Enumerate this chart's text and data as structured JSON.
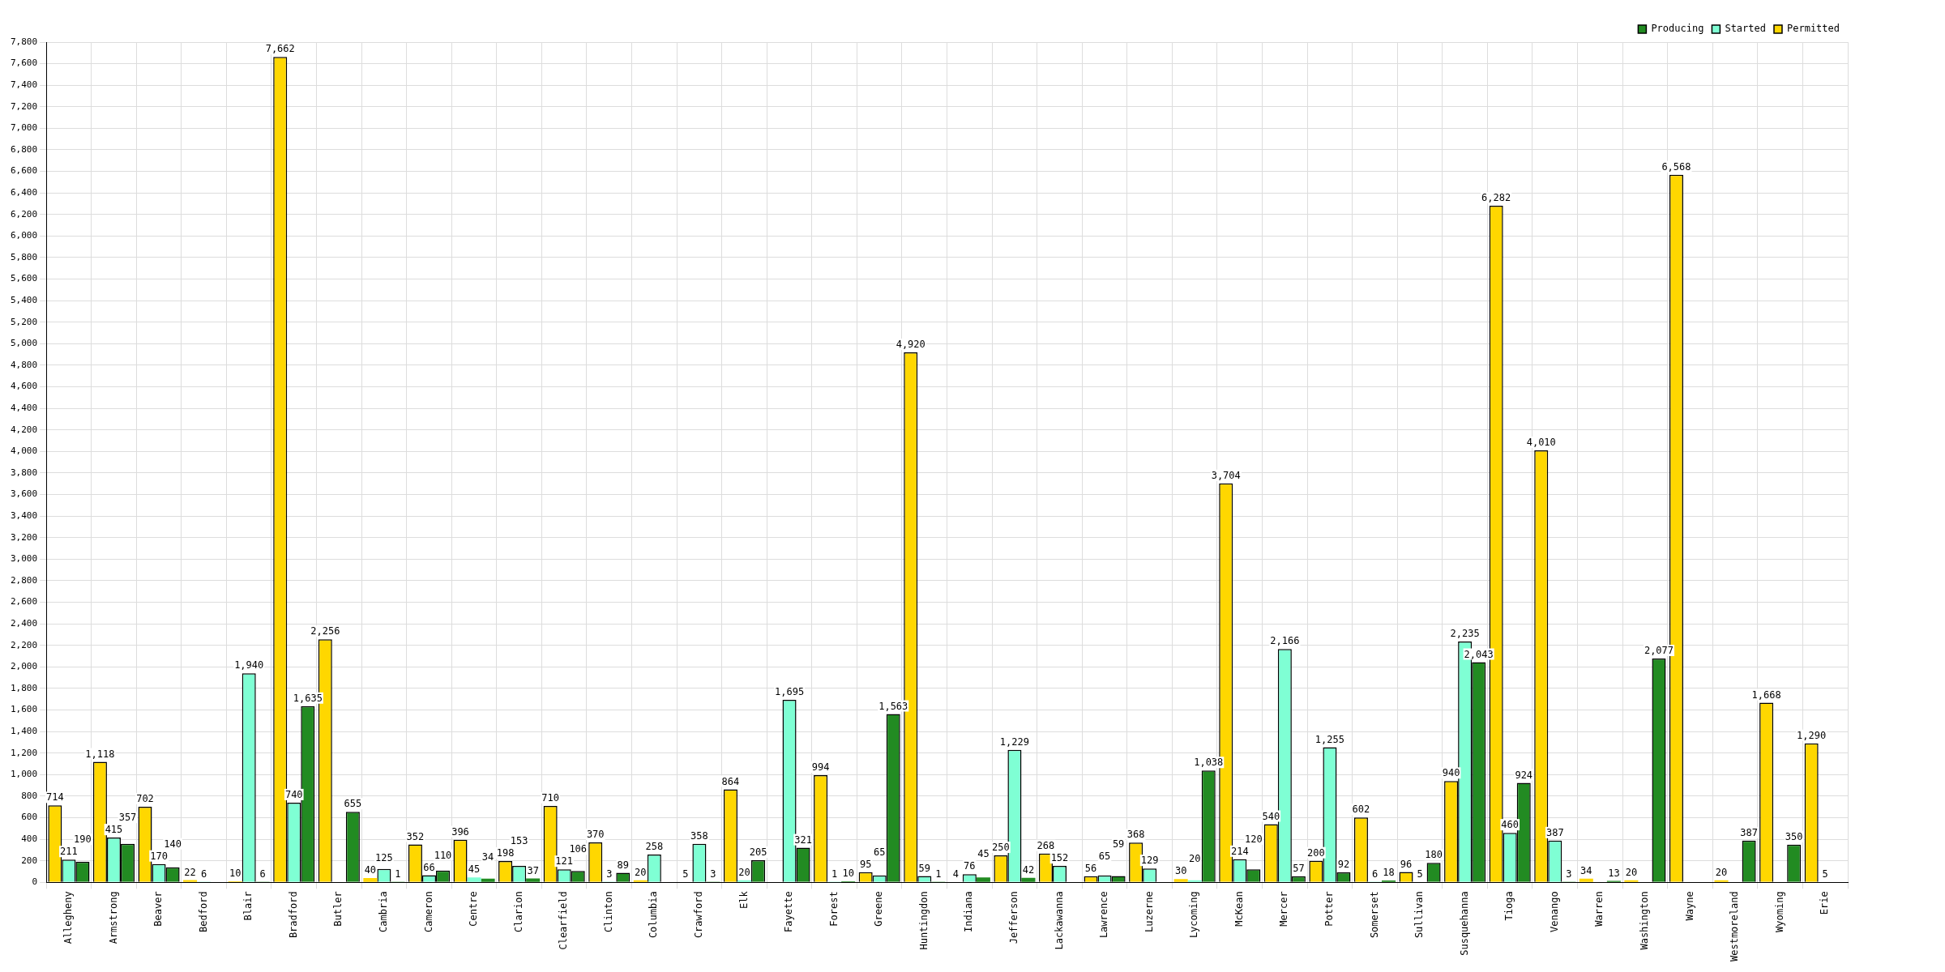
{
  "chart_data": {
    "type": "bar",
    "categories": [
      "Allegheny",
      "Armstrong",
      "Beaver",
      "Bedford",
      "Blair",
      "Bradford",
      "Butler",
      "Cambria",
      "Cameron",
      "Centre",
      "Clarion",
      "Clearfield",
      "Clinton",
      "Columbia",
      "Crawford",
      "Elk",
      "Fayette",
      "Forest",
      "Greene",
      "Huntingdon",
      "Indiana",
      "Jefferson",
      "Lackawanna",
      "Lawrence",
      "Luzerne",
      "Lycoming",
      "McKean",
      "Mercer",
      "Potter",
      "Somerset",
      "Sullivan",
      "Susquehanna",
      "Tioga",
      "Venango",
      "Warren",
      "Washington",
      "Wayne",
      "Westmoreland",
      "Wyoming",
      "Erie"
    ],
    "series": [
      {
        "name": "Permitted",
        "color": "#ffd700",
        "values": [
          714,
          1118,
          702,
          22,
          10,
          7662,
          2256,
          40,
          352,
          396,
          198,
          710,
          370,
          20,
          5,
          864,
          0,
          994,
          95,
          4920,
          4,
          250,
          268,
          56,
          368,
          30,
          3704,
          540,
          200,
          602,
          96,
          940,
          6282,
          4010,
          34,
          20,
          6568,
          20,
          1668,
          1290
        ],
        "value_labels": [
          "714",
          "1,118",
          "702",
          "22",
          "10",
          "7,662",
          "2,256",
          "40",
          "352",
          "396",
          "198",
          "710",
          "370",
          "20",
          "5",
          "864",
          null,
          "994",
          "95",
          "4,920",
          "4",
          "250",
          "268",
          "56",
          "368",
          "30",
          "3,704",
          "540",
          "200",
          "602",
          "96",
          "940",
          "6,282",
          "4,010",
          "34",
          "20",
          "6,568",
          "20",
          "1,668",
          "1,290"
        ]
      },
      {
        "name": "Started",
        "color": "#7fffd4",
        "values": [
          211,
          415,
          170,
          6,
          1940,
          740,
          0,
          125,
          66,
          45,
          153,
          121,
          3,
          258,
          358,
          20,
          1695,
          1,
          65,
          59,
          76,
          1229,
          152,
          65,
          129,
          20,
          214,
          2166,
          1255,
          6,
          5,
          2235,
          460,
          387,
          0,
          0,
          0,
          0,
          0,
          5
        ],
        "value_labels": [
          "211",
          "415",
          "170",
          "6",
          "1,940",
          "740",
          null,
          "125",
          "66",
          "45",
          "153",
          "121",
          "3",
          "258",
          "358",
          "20",
          "1,695",
          "1",
          "65",
          "59",
          "76",
          "1,229",
          "152",
          "65",
          "129",
          "20",
          "214",
          "2,166",
          "1,255",
          "6",
          "5",
          "2,235",
          "460",
          "387",
          null,
          null,
          null,
          null,
          null,
          "5"
        ]
      },
      {
        "name": "Producing",
        "color": "#228b22",
        "values": [
          190,
          357,
          140,
          0,
          6,
          1635,
          655,
          1,
          110,
          34,
          37,
          106,
          89,
          0,
          3,
          205,
          321,
          10,
          1563,
          1,
          45,
          42,
          0,
          59,
          0,
          1038,
          120,
          57,
          92,
          18,
          180,
          2043,
          924,
          3,
          13,
          2077,
          0,
          387,
          350,
          0
        ],
        "value_labels": [
          "190",
          "357",
          "140",
          null,
          "6",
          "1,635",
          "655",
          "1",
          "110",
          "34",
          "37",
          "106",
          "89",
          null,
          "3",
          "205",
          "321",
          "10",
          "1,563",
          "1",
          "45",
          "42",
          null,
          "59",
          null,
          "1,038",
          "120",
          "57",
          "92",
          "18",
          "180",
          "2,043",
          "924",
          "3",
          "13",
          "2,077",
          null,
          "387",
          "350",
          null
        ]
      }
    ],
    "ylim": [
      0,
      7800
    ],
    "yticks": [
      {
        "value": 0,
        "label": "0"
      },
      {
        "value": 200,
        "label": "200"
      },
      {
        "value": 400,
        "label": "400"
      },
      {
        "value": 600,
        "label": "600"
      },
      {
        "value": 800,
        "label": "800"
      },
      {
        "value": 1000,
        "label": "1,000"
      },
      {
        "value": 1200,
        "label": "1,200"
      },
      {
        "value": 1400,
        "label": "1,400"
      },
      {
        "value": 1600,
        "label": "1,600"
      },
      {
        "value": 1800,
        "label": "1,800"
      },
      {
        "value": 2000,
        "label": "2,000"
      },
      {
        "value": 2200,
        "label": "2,200"
      },
      {
        "value": 2400,
        "label": "2,400"
      },
      {
        "value": 2600,
        "label": "2,600"
      },
      {
        "value": 2800,
        "label": "2,800"
      },
      {
        "value": 3000,
        "label": "3,000"
      },
      {
        "value": 3200,
        "label": "3,200"
      },
      {
        "value": 3400,
        "label": "3,400"
      },
      {
        "value": 3600,
        "label": "3,600"
      },
      {
        "value": 3800,
        "label": "3,800"
      },
      {
        "value": 4000,
        "label": "4,000"
      },
      {
        "value": 4200,
        "label": "4,200"
      },
      {
        "value": 4400,
        "label": "4,400"
      },
      {
        "value": 4600,
        "label": "4,600"
      },
      {
        "value": 4800,
        "label": "4,800"
      },
      {
        "value": 5000,
        "label": "5,000"
      },
      {
        "value": 5200,
        "label": "5,200"
      },
      {
        "value": 5400,
        "label": "5,400"
      },
      {
        "value": 5600,
        "label": "5,600"
      },
      {
        "value": 5800,
        "label": "5,800"
      },
      {
        "value": 6000,
        "label": "6,000"
      },
      {
        "value": 6200,
        "label": "6,200"
      },
      {
        "value": 6400,
        "label": "6,400"
      },
      {
        "value": 6600,
        "label": "6,600"
      },
      {
        "value": 6800,
        "label": "6,800"
      },
      {
        "value": 7000,
        "label": "7,000"
      },
      {
        "value": 7200,
        "label": "7,200"
      },
      {
        "value": 7400,
        "label": "7,400"
      },
      {
        "value": 7600,
        "label": "7,600"
      },
      {
        "value": 7800,
        "label": "7,800"
      }
    ],
    "grid": true,
    "legend": "top right"
  }
}
